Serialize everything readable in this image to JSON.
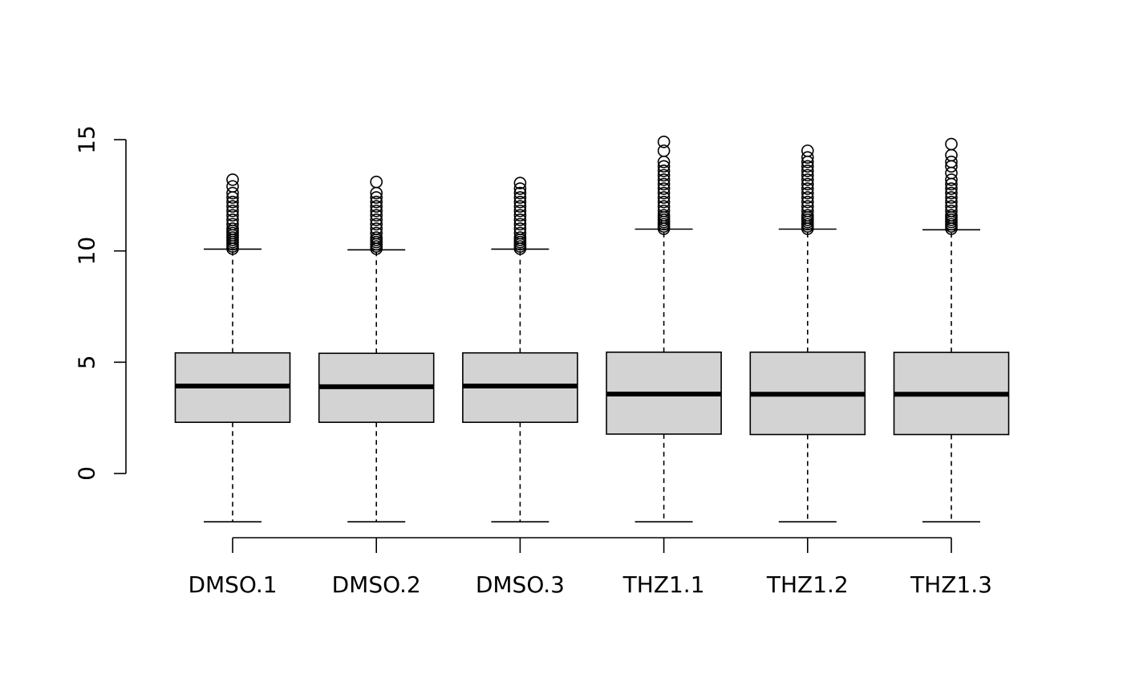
{
  "chart_data": {
    "type": "boxplot",
    "title": "",
    "xlabel": "",
    "ylabel": "",
    "categories": [
      "DMSO.1",
      "DMSO.2",
      "DMSO.3",
      "THZ1.1",
      "THZ1.2",
      "THZ1.3"
    ],
    "yticks": [
      "0",
      "5",
      "10",
      "15"
    ],
    "ylim": [
      -2.5,
      15
    ],
    "box_color": "#d3d3d3",
    "boxes": [
      {
        "name": "DMSO.1",
        "whisker_low": -2.17,
        "q1": 2.3,
        "median": 3.93,
        "q3": 5.42,
        "whisker_high": 10.08,
        "outliers": [
          10.1,
          10.2,
          10.3,
          10.4,
          10.5,
          10.6,
          10.7,
          10.8,
          10.9,
          11.0,
          11.2,
          11.4,
          11.6,
          11.8,
          12.0,
          12.2,
          12.4,
          12.6,
          12.9,
          13.2
        ]
      },
      {
        "name": "DMSO.2",
        "whisker_low": -2.17,
        "q1": 2.3,
        "median": 3.9,
        "q3": 5.4,
        "whisker_high": 10.05,
        "outliers": [
          10.1,
          10.2,
          10.3,
          10.4,
          10.5,
          10.6,
          10.8,
          11.0,
          11.2,
          11.4,
          11.6,
          11.8,
          12.0,
          12.2,
          12.4,
          12.6,
          13.1
        ]
      },
      {
        "name": "DMSO.3",
        "whisker_low": -2.17,
        "q1": 2.3,
        "median": 3.93,
        "q3": 5.42,
        "whisker_high": 10.08,
        "outliers": [
          10.1,
          10.2,
          10.3,
          10.4,
          10.5,
          10.6,
          10.8,
          11.0,
          11.2,
          11.4,
          11.6,
          11.8,
          12.0,
          12.2,
          12.4,
          12.6,
          12.8,
          13.05
        ]
      },
      {
        "name": "THZ1.1",
        "whisker_low": -2.17,
        "q1": 1.77,
        "median": 3.57,
        "q3": 5.45,
        "whisker_high": 10.98,
        "outliers": [
          11.0,
          11.1,
          11.2,
          11.3,
          11.4,
          11.5,
          11.6,
          11.8,
          12.0,
          12.2,
          12.4,
          12.6,
          12.8,
          13.0,
          13.2,
          13.4,
          13.6,
          13.8,
          14.0,
          14.5,
          14.9
        ]
      },
      {
        "name": "THZ1.2",
        "whisker_low": -2.17,
        "q1": 1.75,
        "median": 3.56,
        "q3": 5.45,
        "whisker_high": 10.98,
        "outliers": [
          11.0,
          11.1,
          11.2,
          11.3,
          11.4,
          11.5,
          11.6,
          11.8,
          12.0,
          12.2,
          12.4,
          12.6,
          12.8,
          13.0,
          13.2,
          13.4,
          13.6,
          13.8,
          14.0,
          14.2,
          14.5
        ]
      },
      {
        "name": "THZ1.3",
        "whisker_low": -2.17,
        "q1": 1.75,
        "median": 3.56,
        "q3": 5.44,
        "whisker_high": 10.95,
        "outliers": [
          11.0,
          11.1,
          11.2,
          11.3,
          11.4,
          11.5,
          11.6,
          11.8,
          12.0,
          12.2,
          12.4,
          12.6,
          12.8,
          13.0,
          13.2,
          13.5,
          13.8,
          14.0,
          14.3,
          14.8
        ]
      }
    ]
  }
}
